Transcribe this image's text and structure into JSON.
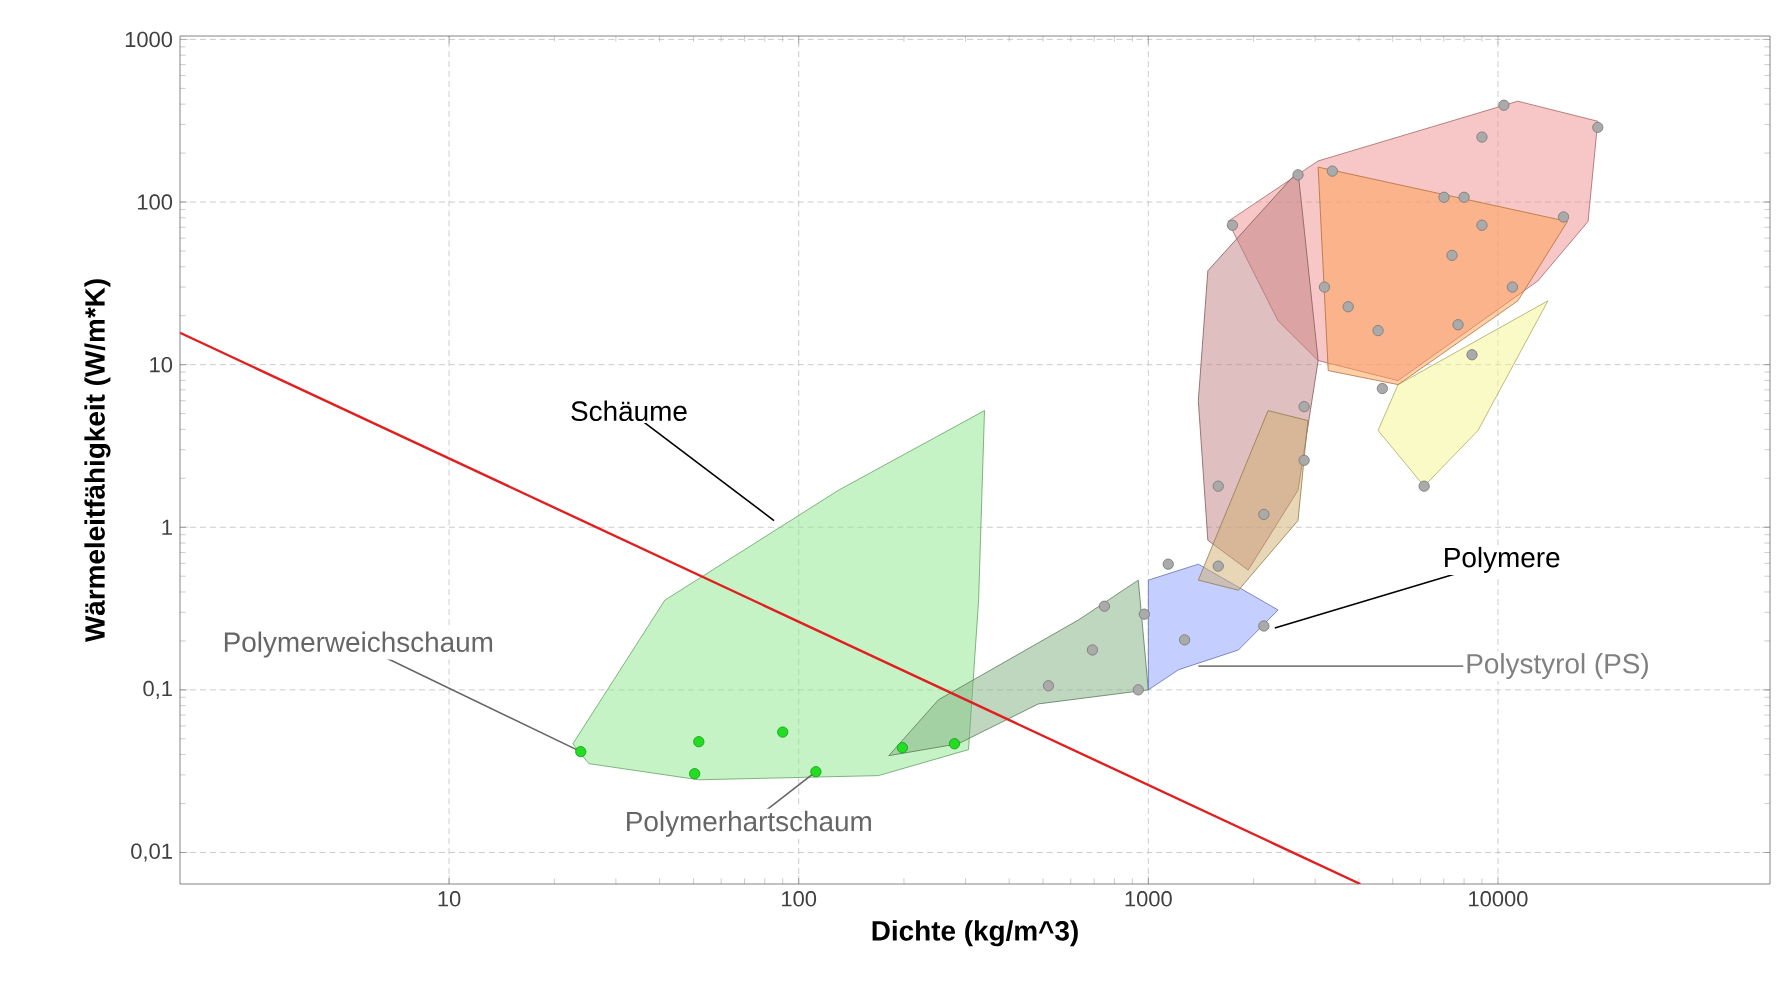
{
  "chart_data": {
    "type": "scatter",
    "xlabel": "Dichte (kg/m^3)",
    "ylabel": "Wärmeleitfähigkeit (W/m*K)",
    "log": "xy",
    "grid": true,
    "xlim": [
      1.7,
      60000
    ],
    "ylim": [
      0.0064,
      1050
    ],
    "xticks": [
      10,
      100,
      1000,
      10000
    ],
    "yticks": [
      {
        "value": 0.01,
        "label": "0,01"
      },
      {
        "value": 0.1,
        "label": "0,1"
      },
      1,
      10,
      100,
      1000
    ],
    "series": [
      {
        "type": "area",
        "color": "#8ee88e",
        "x": [
          22.6,
          41.4,
          130,
          340,
          327,
          306,
          169,
          51.8,
          25.1
        ],
        "values": [
          0.0466,
          0.356,
          1.69,
          5.22,
          0.356,
          0.0429,
          0.0297,
          0.028,
          0.0352
        ]
      },
      {
        "type": "area",
        "color": "#7fb07f",
        "x": [
          181,
          251,
          631,
          936,
          1000,
          485,
          286
        ],
        "values": [
          0.0394,
          0.0869,
          0.269,
          0.473,
          0.1,
          0.082,
          0.0466
        ]
      },
      {
        "type": "area",
        "color": "#8aa0ff",
        "x": [
          1000,
          1390,
          2350,
          1810,
          1220,
          1000
        ],
        "values": [
          0.473,
          0.593,
          0.31,
          0.176,
          0.133,
          0.1
        ]
      },
      {
        "type": "area",
        "color": "#f09090",
        "x": [
          1690,
          3060,
          11400,
          19300,
          18100,
          13000,
          5180,
          3060,
          2350
        ],
        "values": [
          76,
          179,
          417,
          314,
          76,
          32.7,
          7.98,
          10.6,
          18.6
        ]
      },
      {
        "type": "area",
        "color": "#f5f590",
        "x": [
          5180,
          13900,
          8770,
          6150,
          4540
        ],
        "values": [
          7.54,
          24.7,
          3.94,
          1.79,
          3.94
        ]
      },
      {
        "type": "area",
        "color": "#ffa050",
        "x": [
          3060,
          15800,
          11400,
          5180,
          3270
        ],
        "values": [
          164,
          76,
          24.7,
          7.54,
          9.19
        ]
      },
      {
        "type": "area",
        "color": "#c08080",
        "x": [
          1480,
          2680,
          3060,
          2680,
          1930,
          1480,
          1390
        ],
        "values": [
          37.8,
          155,
          10.6,
          1.69,
          0.545,
          0.832,
          6.0
        ]
      },
      {
        "type": "area",
        "color": "#d0b070",
        "x": [
          1390,
          2200,
          2860,
          2680,
          1810
        ],
        "values": [
          0.473,
          5.22,
          4.53,
          1.1,
          0.41
        ]
      },
      {
        "type": "line",
        "color": "#e02020",
        "marker": "none",
        "x": [
          1.7,
          4040
        ],
        "values": [
          15.7,
          0.0064
        ]
      },
      {
        "color": "#aaaaaa",
        "marker": "circle",
        "x": [
          518,
          692,
          749,
          936,
          1140,
          974,
          1270,
          2140,
          1585,
          2140,
          2790,
          2790,
          1740,
          2680,
          3360,
          10400,
          19300,
          9000,
          7010,
          8000,
          9000,
          15400,
          7390,
          3190,
          3730,
          4540,
          7690,
          8430,
          11000,
          4670,
          6150,
          1585
        ],
        "values": [
          0.106,
          0.176,
          0.327,
          0.1,
          0.593,
          0.292,
          0.203,
          0.247,
          1.79,
          1.2,
          5.52,
          2.58,
          72,
          147,
          155,
          394,
          288,
          251,
          107,
          107,
          72,
          81,
          47,
          30,
          22.7,
          16.2,
          17.6,
          11.5,
          30,
          7.13,
          1.79,
          0.577
        ]
      },
      {
        "color": "#22dd22",
        "marker": "circle",
        "x": [
          23.8,
          51.8,
          50.4,
          90,
          112,
          198,
          279
        ],
        "values": [
          0.0417,
          0.048,
          0.0305,
          0.055,
          0.0314,
          0.0441,
          0.0466
        ]
      }
    ],
    "annotations": [
      "Schäume",
      {
        "text": "Polymerweichschaum",
        "x": 23.8,
        "y": 0.0417
      },
      "Polymerhartschaum",
      {
        "text": "Polymere",
        "x": 2300,
        "y": 0.24
      },
      {
        "text": "Polystyrol (PS)",
        "x": 1390,
        "y": 0.14
      }
    ]
  }
}
